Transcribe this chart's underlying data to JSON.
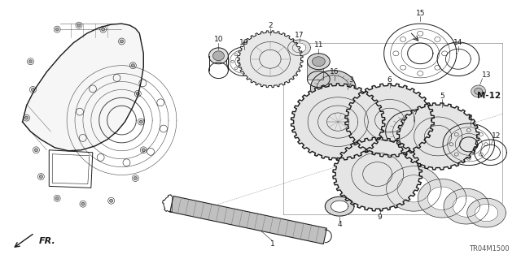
{
  "bg_color": "#ffffff",
  "fig_width": 6.4,
  "fig_height": 3.19,
  "dpi": 100,
  "line_color": "#1a1a1a",
  "gray_fill": "#d8d8d8",
  "light_gray": "#eeeeee",
  "label_fontsize": 6.5,
  "ref_fontsize": 6.0,
  "fr_fontsize": 8.0,
  "part_ref_label": "TR04M1500",
  "fr_label": "FR.",
  "m12_label": "M-12"
}
